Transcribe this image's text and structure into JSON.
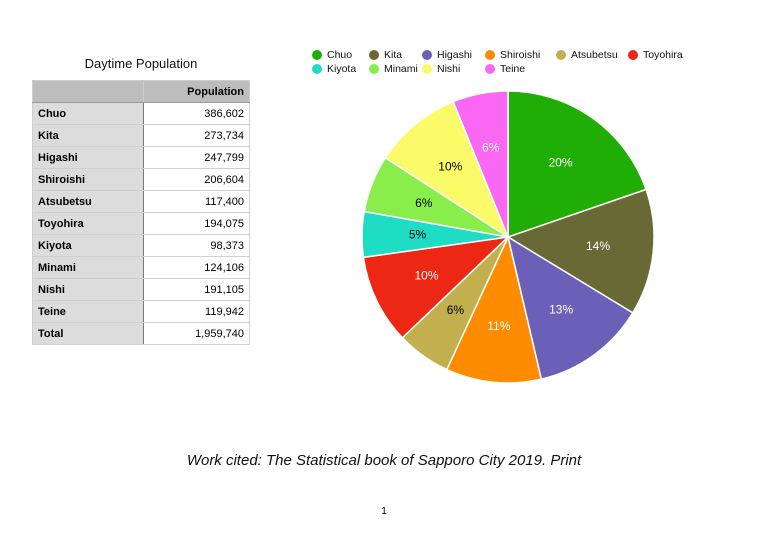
{
  "table": {
    "title": "Daytime  Population",
    "header": "Population",
    "rows": [
      {
        "name": "Chuo",
        "value": "386,602"
      },
      {
        "name": "Kita",
        "value": "273,734"
      },
      {
        "name": "Higashi",
        "value": "247,799"
      },
      {
        "name": "Shiroishi",
        "value": "206,604"
      },
      {
        "name": "Atsubetsu",
        "value": "117,400"
      },
      {
        "name": "Toyohira",
        "value": "194,075"
      },
      {
        "name": "Kiyota",
        "value": "98,373"
      },
      {
        "name": "Minami",
        "value": "124,106"
      },
      {
        "name": "Nishi",
        "value": "191,105"
      },
      {
        "name": "Teine",
        "value": "119,942"
      }
    ],
    "total_label": "Total",
    "total_value": "1,959,740"
  },
  "chart_data": {
    "type": "pie",
    "categories": [
      "Chuo",
      "Kita",
      "Higashi",
      "Shiroishi",
      "Atsubetsu",
      "Toyohira",
      "Kiyota",
      "Minami",
      "Nishi",
      "Teine"
    ],
    "values": [
      386602,
      273734,
      247799,
      206604,
      117400,
      194075,
      98373,
      124106,
      191105,
      119942
    ],
    "labels": [
      "20%",
      "14%",
      "13%",
      "11%",
      "6%",
      "10%",
      "5%",
      "6%",
      "10%",
      "6%"
    ],
    "colors": [
      "#1fad06",
      "#696936",
      "#6b5fb8",
      "#ff8c00",
      "#c2b04e",
      "#ec2713",
      "#1fdcc5",
      "#89ee4b",
      "#fbfb6a",
      "#f967f3"
    ],
    "label_colors": [
      "#ffffff",
      "#ffffff",
      "#ffffff",
      "#ffffff",
      "#000000",
      "#ffffff",
      "#000000",
      "#000000",
      "#000000",
      "#ffffff"
    ],
    "legend_placement": "top"
  },
  "citation": "Work cited: The Statistical book of Sapporo City 2019. Print",
  "page_number": "1"
}
